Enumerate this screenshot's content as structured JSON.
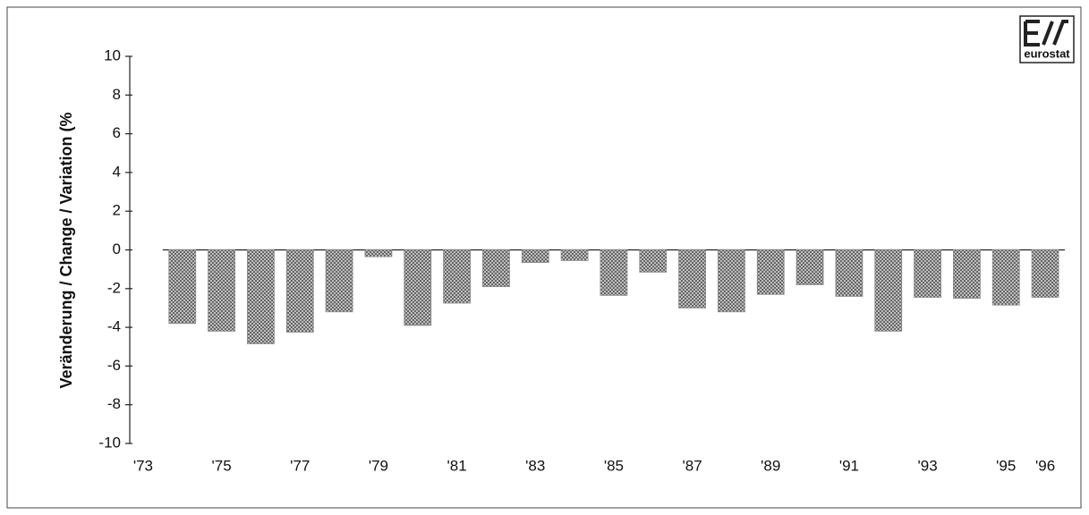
{
  "chart_data": {
    "type": "bar",
    "y_label": "Veränderung / Change / Variation (%",
    "logo": "eurostat",
    "categories": [
      "'73",
      null,
      "'75",
      null,
      "'77",
      null,
      "'79",
      null,
      "'81",
      null,
      "'83",
      null,
      "'85",
      null,
      "'87",
      null,
      "'89",
      null,
      "'91",
      null,
      "'93",
      null,
      "'95",
      "'96"
    ],
    "values": [
      null,
      -3.8,
      -4.2,
      -4.85,
      -4.25,
      -3.2,
      -0.35,
      -3.9,
      -2.75,
      -1.9,
      -0.65,
      -0.55,
      -2.35,
      -1.15,
      -3.0,
      -3.2,
      -2.3,
      -1.8,
      -2.4,
      -4.2,
      -2.45,
      -2.5,
      -2.85,
      -2.45
    ],
    "color": "#8a8a8a",
    "ylim": [
      -10,
      10
    ],
    "yticks": [
      -10,
      -8,
      -6,
      -4,
      -2,
      0,
      2,
      4,
      6,
      8,
      10
    ],
    "grid": false
  }
}
